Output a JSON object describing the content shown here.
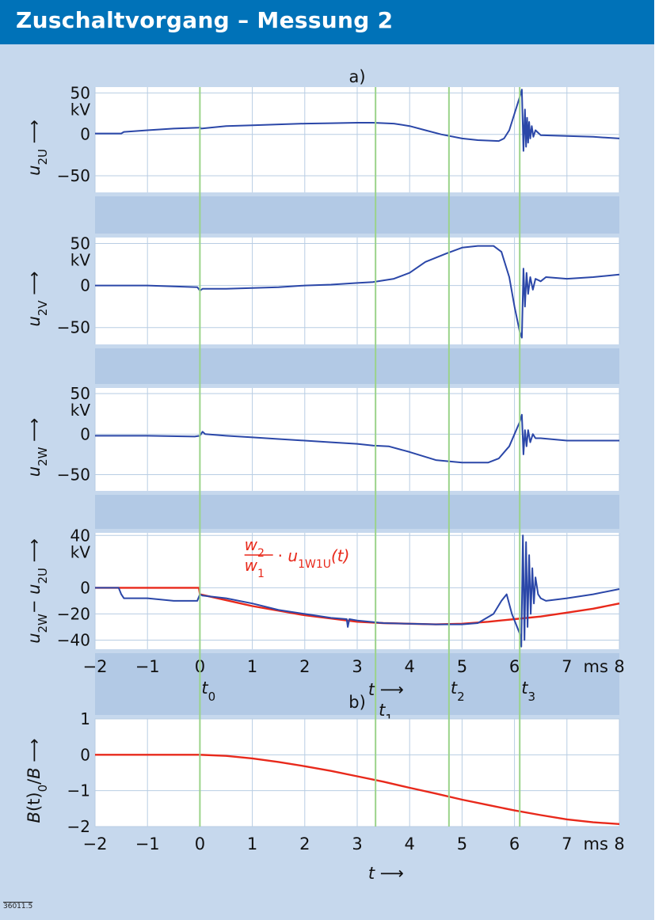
{
  "header": {
    "title": "Zuschaltvorgang – Messung 2"
  },
  "figure_id": "36011.5",
  "colors": {
    "header": "#0072b8",
    "background": "#c6d8ed",
    "plot_background": "#ffffff",
    "grid": "#b8cde3",
    "blue_trace": "#2b47a8",
    "red_trace": "#e8291b",
    "marker_lines": "#9bd38a"
  },
  "chart_data": [
    {
      "type": "line",
      "panel": "a)",
      "ylabel": {
        "var": "u",
        "sub": "2U",
        "arrow": "⟶"
      },
      "yunit": "kV",
      "ylim": [
        -70,
        57
      ],
      "yticks": [
        "50",
        "0",
        "-50"
      ],
      "grid": true,
      "series": [
        {
          "color": "blue",
          "x": [
            -2,
            -1.5,
            -1.45,
            -1,
            -0.5,
            -0.02,
            0,
            0.02,
            0.5,
            1,
            1.5,
            2,
            2.5,
            3,
            3.3,
            3.7,
            4,
            4.3,
            4.6,
            5,
            5.3,
            5.7,
            5.8,
            5.9,
            6.0,
            6.1,
            6.14,
            6.17,
            6.2,
            6.22,
            6.24,
            6.26,
            6.28,
            6.3,
            6.33,
            6.36,
            6.4,
            6.45,
            6.5,
            7,
            7.5,
            8
          ],
          "y": [
            1,
            1,
            3,
            5,
            7,
            8,
            9,
            7,
            10,
            11,
            12,
            13,
            13.5,
            14,
            14,
            13,
            10,
            5,
            0,
            -5,
            -7,
            -8,
            -5,
            5,
            25,
            45,
            54,
            -20,
            30,
            -15,
            20,
            -10,
            15,
            -5,
            10,
            -3,
            5,
            2,
            -1,
            -2,
            -3,
            -5
          ]
        }
      ]
    },
    {
      "type": "line",
      "ylabel": {
        "var": "u",
        "sub": "2V",
        "arrow": "⟶"
      },
      "yunit": "kV",
      "ylim": [
        -70,
        57
      ],
      "yticks": [
        "50",
        "0",
        "-50"
      ],
      "grid": true,
      "series": [
        {
          "color": "blue",
          "x": [
            -2,
            -1,
            -0.05,
            0,
            0.05,
            0.5,
            1,
            1.5,
            2,
            2.5,
            3,
            3.3,
            3.7,
            4,
            4.3,
            4.7,
            5,
            5.3,
            5.6,
            5.75,
            5.9,
            6.0,
            6.1,
            6.14,
            6.17,
            6.2,
            6.23,
            6.26,
            6.3,
            6.35,
            6.4,
            6.5,
            6.6,
            7,
            7.5,
            8
          ],
          "y": [
            0,
            0,
            -2,
            -6,
            -4,
            -4,
            -3,
            -2,
            0,
            1,
            3,
            4,
            8,
            15,
            28,
            38,
            45,
            47,
            47,
            40,
            10,
            -25,
            -55,
            -62,
            20,
            -25,
            15,
            -10,
            10,
            -5,
            8,
            5,
            10,
            8,
            10,
            13
          ]
        }
      ]
    },
    {
      "type": "line",
      "ylabel": {
        "var": "u",
        "sub": "2W",
        "arrow": "⟶"
      },
      "yunit": "kV",
      "ylim": [
        -70,
        57
      ],
      "yticks": [
        "50",
        "0",
        "-50"
      ],
      "grid": true,
      "series": [
        {
          "color": "blue",
          "x": [
            -2,
            -1,
            -0.1,
            0,
            0.05,
            0.1,
            0.5,
            1,
            1.5,
            2,
            2.5,
            3,
            3.3,
            3.6,
            4,
            4.5,
            5,
            5.5,
            5.7,
            5.9,
            6.0,
            6.1,
            6.14,
            6.17,
            6.2,
            6.23,
            6.26,
            6.3,
            6.35,
            6.4,
            6.5,
            7,
            7.5,
            8
          ],
          "y": [
            -2,
            -2,
            -3,
            -2,
            3,
            0,
            -2,
            -4,
            -6,
            -8,
            -10,
            -12,
            -14,
            -15,
            -22,
            -32,
            -35,
            -35,
            -30,
            -15,
            0,
            15,
            24,
            -25,
            5,
            -15,
            5,
            -10,
            0,
            -5,
            -5,
            -8,
            -8,
            -8
          ]
        }
      ]
    },
    {
      "type": "line",
      "ylabel": {
        "var": "u",
        "sub": "2W",
        "minus": "− u",
        "sub2": "2U",
        "arrow": "⟶"
      },
      "yunit": "kV",
      "ylim": [
        -47,
        42
      ],
      "yticks": [
        "40",
        "0",
        "-20",
        "-40"
      ],
      "xlim": [
        -2,
        8
      ],
      "xticks": [
        "-2",
        "-1",
        "0",
        "1",
        "2",
        "3",
        "4",
        "5",
        "6",
        "7",
        "8"
      ],
      "xunit": "ms",
      "xlabel": {
        "var": "t",
        "arrow": "⟶"
      },
      "annotation": {
        "num": "w",
        "num_sub": "2",
        "den": "w",
        "den_sub": "1",
        "dot": "·",
        "var": "u",
        "var_sub": "1W1U",
        "arg": "(t)"
      },
      "markers": [
        {
          "label": "t",
          "sub": "0",
          "x": 0
        },
        {
          "label": "t",
          "sub": "1",
          "x": 3.35
        },
        {
          "label": "t",
          "sub": "2",
          "x": 4.75
        },
        {
          "label": "t",
          "sub": "3",
          "x": 6.1
        }
      ],
      "grid": true,
      "series": [
        {
          "color": "red",
          "x": [
            -2,
            -0.02,
            0,
            1,
            2,
            3,
            3.5,
            4,
            4.5,
            5,
            5.5,
            6,
            6.5,
            7,
            7.5,
            8
          ],
          "y": [
            0,
            0,
            -5,
            -14,
            -21,
            -26,
            -27,
            -27.5,
            -28,
            -27.5,
            -26,
            -24,
            -22,
            -19,
            -16,
            -12
          ]
        },
        {
          "color": "blue",
          "x": [
            -2,
            -1.55,
            -1.5,
            -1.45,
            -1,
            -0.5,
            -0.05,
            0,
            0.05,
            0.5,
            1,
            1.5,
            2,
            2.5,
            2.8,
            2.82,
            2.85,
            3,
            3.5,
            4,
            4.5,
            5,
            5.3,
            5.6,
            5.75,
            5.85,
            5.95,
            6.05,
            6.1,
            6.13,
            6.16,
            6.19,
            6.22,
            6.25,
            6.28,
            6.31,
            6.34,
            6.37,
            6.4,
            6.45,
            6.5,
            6.6,
            7,
            7.5,
            8
          ],
          "y": [
            0,
            0,
            -5,
            -8,
            -8,
            -10,
            -10,
            -5,
            -6,
            -8,
            -12,
            -17,
            -20,
            -23,
            -24,
            -30,
            -24,
            -25,
            -27,
            -27.5,
            -28,
            -28,
            -27,
            -20,
            -10,
            -5,
            -20,
            -30,
            -35,
            -45,
            40,
            -40,
            35,
            -30,
            25,
            -20,
            15,
            -12,
            8,
            -5,
            -8,
            -10,
            -8,
            -5,
            -1
          ]
        }
      ]
    },
    {
      "type": "line",
      "panel": "b)",
      "ylabel": {
        "var": "B",
        "arg": "(t)",
        "slash": "/",
        "var2": "B",
        "sub2": "0",
        "arrow": "⟶"
      },
      "ylim": [
        -2,
        1
      ],
      "yticks": [
        "1",
        "0",
        "-1",
        "-2"
      ],
      "xlim": [
        -2,
        8
      ],
      "xticks": [
        "-2",
        "-1",
        "0",
        "1",
        "2",
        "3",
        "4",
        "5",
        "6",
        "7",
        "8"
      ],
      "xunit": "ms",
      "xlabel": {
        "var": "t",
        "arrow": "⟶"
      },
      "grid": true,
      "series": [
        {
          "color": "red",
          "x": [
            -2,
            -1,
            0,
            0.5,
            1,
            1.5,
            2,
            2.5,
            3,
            3.5,
            4,
            4.5,
            5,
            5.5,
            6,
            6.5,
            7,
            7.5,
            8
          ],
          "y": [
            0,
            0,
            0,
            -0.03,
            -0.1,
            -0.2,
            -0.32,
            -0.45,
            -0.6,
            -0.75,
            -0.92,
            -1.08,
            -1.25,
            -1.4,
            -1.55,
            -1.68,
            -1.8,
            -1.88,
            -1.93
          ]
        }
      ]
    }
  ]
}
